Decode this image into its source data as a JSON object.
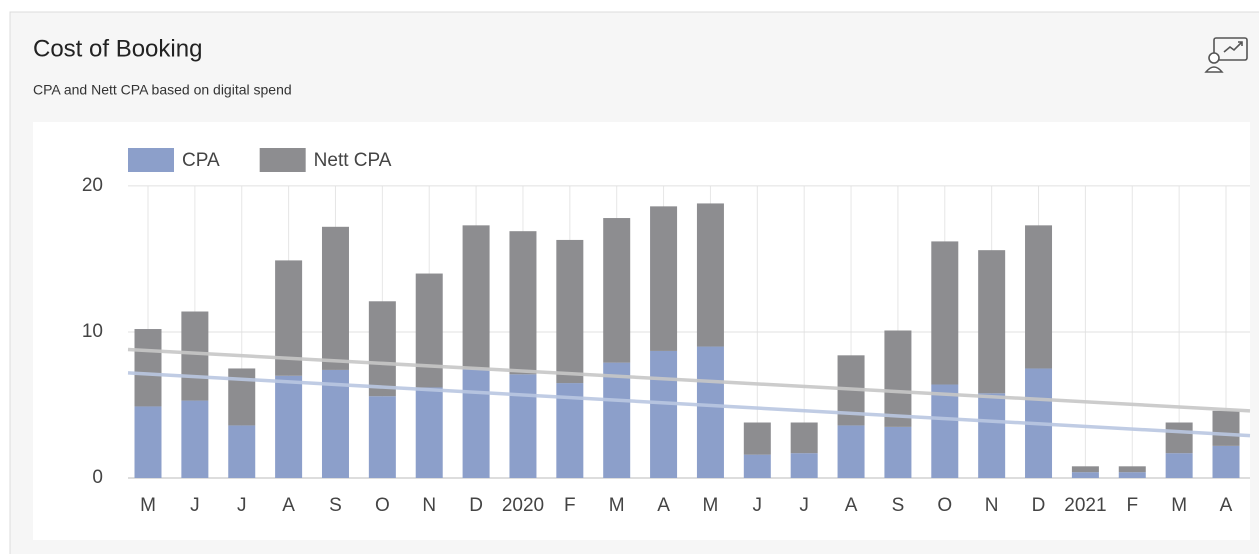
{
  "chart_data": {
    "type": "stacked_bar",
    "title": "Cost of Booking",
    "subtitle": "CPA and Nett CPA based on digital spend",
    "categories": [
      "M",
      "J",
      "J",
      "A",
      "S",
      "O",
      "N",
      "D",
      "2020",
      "F",
      "M",
      "A",
      "M",
      "J",
      "J",
      "A",
      "S",
      "O",
      "N",
      "D",
      "2021",
      "F",
      "M",
      "A"
    ],
    "series": [
      {
        "name": "CPA",
        "color": "#8c9fca",
        "trend_color": "#b9c6e1",
        "trend": [
          7.2,
          2.9
        ],
        "values": [
          4.9,
          5.3,
          3.6,
          7.0,
          7.4,
          5.6,
          6.2,
          7.5,
          7.1,
          6.5,
          7.9,
          8.7,
          9.0,
          1.6,
          1.7,
          3.6,
          3.5,
          6.4,
          5.8,
          7.5,
          0.4,
          0.4,
          1.7,
          2.2
        ]
      },
      {
        "name": "Nett CPA",
        "color": "#8d8d90",
        "trend_color": "#c6c6c6",
        "trend": [
          8.8,
          4.6
        ],
        "values": [
          5.3,
          6.1,
          3.9,
          7.9,
          9.8,
          6.5,
          7.8,
          9.8,
          9.8,
          9.8,
          9.9,
          9.9,
          9.8,
          2.2,
          2.1,
          4.8,
          6.6,
          9.8,
          9.8,
          9.8,
          0.4,
          0.4,
          2.1,
          2.4
        ]
      }
    ],
    "ylim": [
      0,
      21.5
    ],
    "yticks": [
      0,
      10,
      20
    ],
    "grid": true,
    "legend": "top-left"
  }
}
